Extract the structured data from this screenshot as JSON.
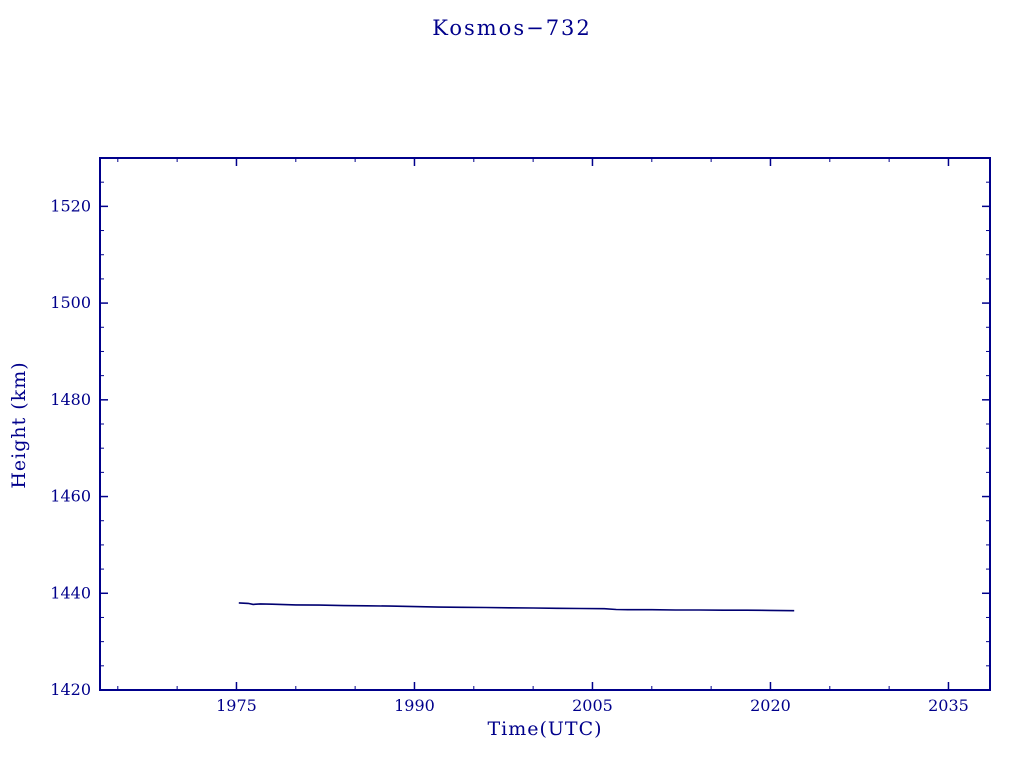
{
  "chart_data": {
    "type": "line",
    "title": "Kosmos−732",
    "xlabel": "Time(UTC)",
    "ylabel": "Height (km)",
    "xlim": [
      1963.5,
      2038.5
    ],
    "ylim": [
      1420,
      1530
    ],
    "xticks": [
      1975,
      1990,
      2005,
      2020,
      2035
    ],
    "yticks": [
      1420,
      1440,
      1460,
      1480,
      1500,
      1520
    ],
    "x_minor_step": 5,
    "y_minor_step": 5,
    "grid": false,
    "legend": "none",
    "frame_color": "#00008B",
    "text_color": "#00008B",
    "line_color": "#000070",
    "series": [
      {
        "name": "height",
        "points": [
          [
            1975.2,
            1438.0
          ],
          [
            1976.0,
            1437.9
          ],
          [
            1976.4,
            1437.7
          ],
          [
            1977.0,
            1437.8
          ],
          [
            1978.0,
            1437.75
          ],
          [
            1980.0,
            1437.6
          ],
          [
            1982.0,
            1437.55
          ],
          [
            1984.0,
            1437.45
          ],
          [
            1986.0,
            1437.4
          ],
          [
            1988.0,
            1437.35
          ],
          [
            1990.0,
            1437.25
          ],
          [
            1992.0,
            1437.15
          ],
          [
            1994.0,
            1437.1
          ],
          [
            1996.0,
            1437.05
          ],
          [
            1998.0,
            1437.0
          ],
          [
            2000.0,
            1436.95
          ],
          [
            2002.0,
            1436.9
          ],
          [
            2004.0,
            1436.85
          ],
          [
            2006.0,
            1436.8
          ],
          [
            2007.0,
            1436.65
          ],
          [
            2008.0,
            1436.6
          ],
          [
            2010.0,
            1436.6
          ],
          [
            2012.0,
            1436.55
          ],
          [
            2014.0,
            1436.55
          ],
          [
            2016.0,
            1436.5
          ],
          [
            2018.0,
            1436.5
          ],
          [
            2020.0,
            1436.45
          ],
          [
            2022.0,
            1436.4
          ]
        ]
      }
    ]
  }
}
